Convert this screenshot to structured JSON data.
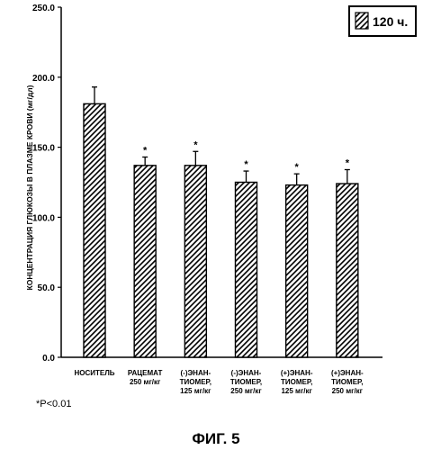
{
  "chart_data": {
    "type": "bar",
    "categories": [
      [
        "НОСИТЕЛЬ"
      ],
      [
        "РАЦЕМАТ",
        "250 мг/кг"
      ],
      [
        "(-)ЭНАН-",
        "ТИОМЕР,",
        "125 мг/кг"
      ],
      [
        "(-)ЭНАН-",
        "ТИОМЕР,",
        "250 мг/кг"
      ],
      [
        "(+)ЭНАН-",
        "ТИОМЕР,",
        "125 мг/кг"
      ],
      [
        "(+)ЭНАН-",
        "ТИОМЕР,",
        "250 мг/кг"
      ]
    ],
    "series": [
      {
        "name": "120 ч.",
        "values": [
          181,
          137,
          137,
          125,
          123,
          124
        ],
        "errors": [
          12,
          6,
          10,
          8,
          8,
          10
        ]
      }
    ],
    "significant": [
      false,
      true,
      true,
      true,
      true,
      true
    ],
    "significance_mark": "*",
    "ylabel": "КОНЦЕНТРАЦИЯ ГЛЮКОЗЫ В ПЛАЗМЕ КРОВИ (мг/дл)",
    "xlabel": "",
    "ylim": [
      0,
      250
    ],
    "yticks": [
      "0.0",
      "50.0",
      "100.0",
      "150.0",
      "200.0",
      "250.0"
    ],
    "legend_position": "top-right",
    "grid": false,
    "pattern": "diagonal-hatch"
  },
  "footnote": "*P<0.01",
  "figure_title": "ФИГ. 5"
}
